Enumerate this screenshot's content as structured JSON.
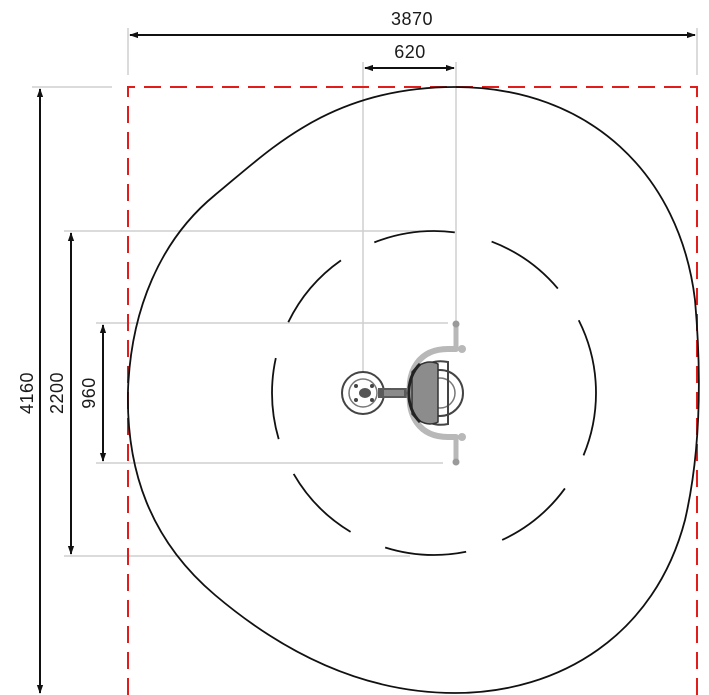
{
  "dimensions": {
    "overall_width": "3870",
    "equipment_width": "620",
    "overall_depth": "4160",
    "fall_zone_depth": "2200",
    "equipment_depth": "960"
  },
  "colors": {
    "safety_zone": "#e21b1b",
    "outline": "#111111",
    "leader_lines": "#cfcfcf",
    "equipment_dark": "#555555",
    "equipment_light": "#b8b8b8"
  }
}
